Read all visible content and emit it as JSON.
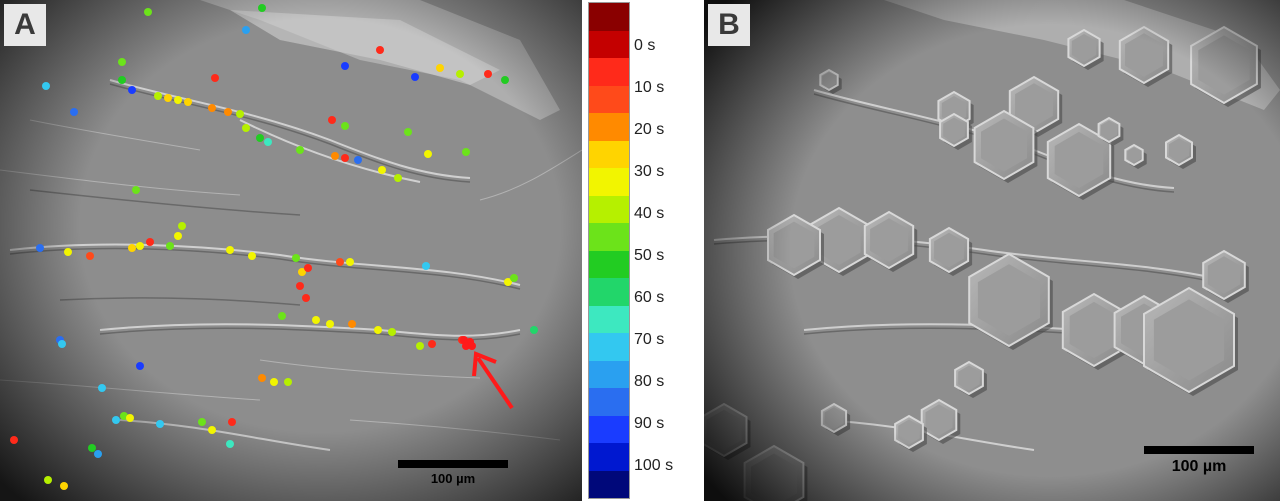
{
  "panel_a": {
    "letter": "A",
    "scalebar_label": "100 µm"
  },
  "panel_b": {
    "letter": "B",
    "scalebar_label": "100 µm"
  },
  "colorbar": {
    "segments": [
      "#8a0000",
      "#c40000",
      "#ff2a1a",
      "#ff4a1a",
      "#ff8a00",
      "#ffd400",
      "#f2f500",
      "#b6f000",
      "#6ce31a",
      "#22cc22",
      "#22d66a",
      "#3de8c0",
      "#33c8f0",
      "#2aa0f0",
      "#2a6ef0",
      "#1a3cff",
      "#0018d0",
      "#00087a"
    ],
    "labels": [
      "0 s",
      "10 s",
      "20 s",
      "30 s",
      "40 s",
      "50 s",
      "60 s",
      "70 s",
      "80 s",
      "90 s",
      "100 s"
    ]
  },
  "arrow_color": "#ff1a1a"
}
